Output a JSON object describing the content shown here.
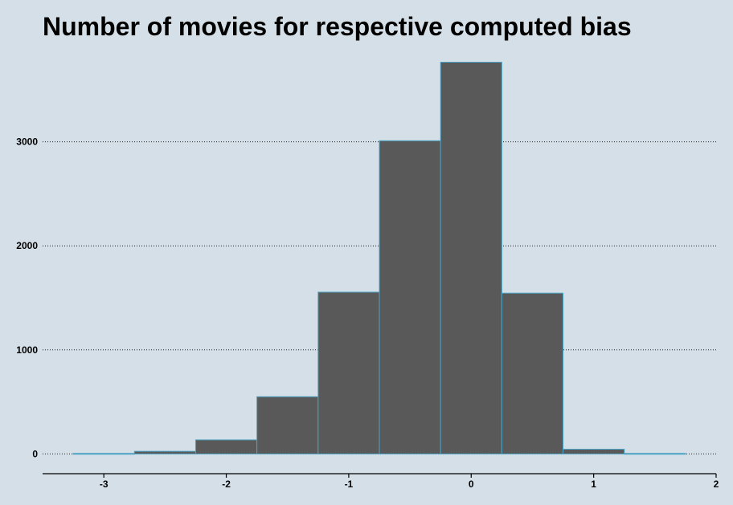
{
  "chart_data": {
    "type": "bar",
    "title": "Number of movies for respective computed bias",
    "xlabel": "",
    "ylabel": "",
    "bin_width": 0.5,
    "bins": [
      {
        "start": -3.25,
        "end": -2.75,
        "count": 5
      },
      {
        "start": -2.75,
        "end": -2.25,
        "count": 25
      },
      {
        "start": -2.25,
        "end": -1.75,
        "count": 135
      },
      {
        "start": -1.75,
        "end": -1.25,
        "count": 550
      },
      {
        "start": -1.25,
        "end": -0.75,
        "count": 1555
      },
      {
        "start": -0.75,
        "end": -0.25,
        "count": 3010
      },
      {
        "start": -0.25,
        "end": 0.25,
        "count": 3765
      },
      {
        "start": 0.25,
        "end": 0.75,
        "count": 1545
      },
      {
        "start": 0.75,
        "end": 1.25,
        "count": 45
      },
      {
        "start": 1.25,
        "end": 1.75,
        "count": 5
      }
    ],
    "xlim": [
      -3.5,
      2
    ],
    "ylim": [
      -190,
      3900
    ],
    "x_ticks": [
      "-3",
      "-2",
      "-1",
      "0",
      "1",
      "2"
    ],
    "y_ticks": [
      "0",
      "1000",
      "2000",
      "3000"
    ],
    "grid": "horizontal dotted",
    "colors": {
      "background": "#d5dfe7",
      "bar_fill": "#595959",
      "bar_edge": "#4aa3c4"
    }
  }
}
